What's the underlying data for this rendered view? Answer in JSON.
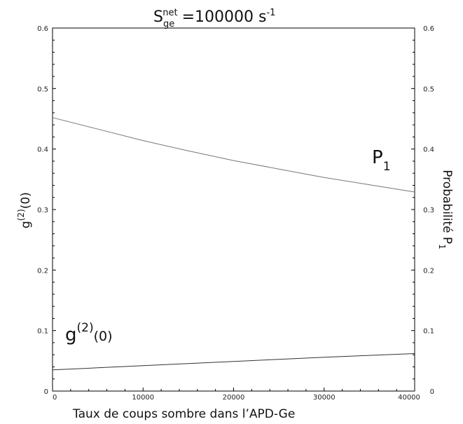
{
  "chart_data": {
    "type": "line",
    "title": {
      "main": "S",
      "subscript": "ge",
      "superscript": "net",
      "value": "=100000 s",
      "unit_sup": "-1"
    },
    "xlabel": "Taux de coups sombre dans l’APD-Ge",
    "ylabel_left": {
      "base": "g",
      "sup": "(2)",
      "rest": "(0)"
    },
    "ylabel_right": {
      "base": "Probabilité P",
      "sub": "1"
    },
    "xlim": [
      0,
      40000
    ],
    "ylim": [
      0,
      0.6
    ],
    "x_ticks": [
      "0",
      "10000",
      "20000",
      "30000",
      "40000"
    ],
    "y_ticks": [
      "0",
      "0.1",
      "0.2",
      "0.3",
      "0.4",
      "0.5",
      "0.6"
    ],
    "y_ticks_right": [
      "0",
      "0.1",
      "0.2",
      "0.3",
      "0.4",
      "0.5",
      "0.6"
    ],
    "grid": false,
    "series": [
      {
        "x": [
          0,
          5000,
          10000,
          15000,
          20000,
          25000,
          30000,
          35000,
          40000
        ],
        "values": [
          0.452,
          0.433,
          0.414,
          0.397,
          0.381,
          0.367,
          0.353,
          0.341,
          0.329
        ],
        "axis": "right",
        "color": "#777777"
      },
      {
        "x": [
          0,
          5000,
          10000,
          15000,
          20000,
          25000,
          30000,
          35000,
          40000
        ],
        "values": [
          0.035,
          0.0385,
          0.042,
          0.0455,
          0.049,
          0.0525,
          0.056,
          0.059,
          0.062
        ],
        "axis": "left",
        "color": "#333333"
      }
    ],
    "annotations": [
      {
        "base": "P",
        "sub": "1"
      },
      {
        "base": "g",
        "sup": "(2)",
        "rest": "(0)"
      }
    ]
  }
}
